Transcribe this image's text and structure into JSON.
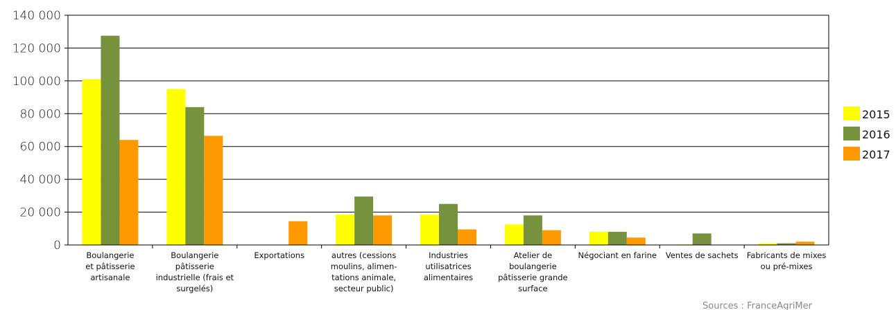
{
  "chart_data": {
    "type": "bar",
    "categories": [
      [
        "Boulangerie",
        "et pâtisserie",
        "artisanale"
      ],
      [
        "Boulangerie",
        "pâtisserie",
        "industrielle (frais et",
        "surgelés)"
      ],
      [
        "Exportations"
      ],
      [
        "autres (cessions",
        "moulins, alimen-",
        "tations animale,",
        "secteur public)"
      ],
      [
        "Industries",
        "utilisatrices",
        "alimentaires"
      ],
      [
        "Atelier de",
        "boulangerie",
        "pâtisserie grande",
        "surface"
      ],
      [
        "Négociant en farine"
      ],
      [
        "Ventes de sachets"
      ],
      [
        "Fabricants de mixes",
        "ou pré-mixes"
      ]
    ],
    "series": [
      {
        "name": "2015",
        "color": "#ffff00",
        "values": [
          101000,
          95000,
          0,
          18500,
          18500,
          12500,
          8000,
          300,
          1000
        ]
      },
      {
        "name": "2016",
        "color": "#76923c",
        "values": [
          127500,
          84000,
          0,
          29500,
          25000,
          18000,
          8000,
          7000,
          1000
        ]
      },
      {
        "name": "2017",
        "color": "#ff9900",
        "values": [
          64000,
          66500,
          14500,
          18000,
          9500,
          9000,
          4500,
          0,
          2000
        ]
      }
    ],
    "yticks": [
      "0",
      "20 000",
      "40 000",
      "60 000",
      "80 000",
      "100 000",
      "120 000",
      "140 000"
    ],
    "ylim": [
      0,
      140000
    ],
    "grid": true,
    "legend_position": "right",
    "source": "Sources : FranceAgriMer"
  }
}
